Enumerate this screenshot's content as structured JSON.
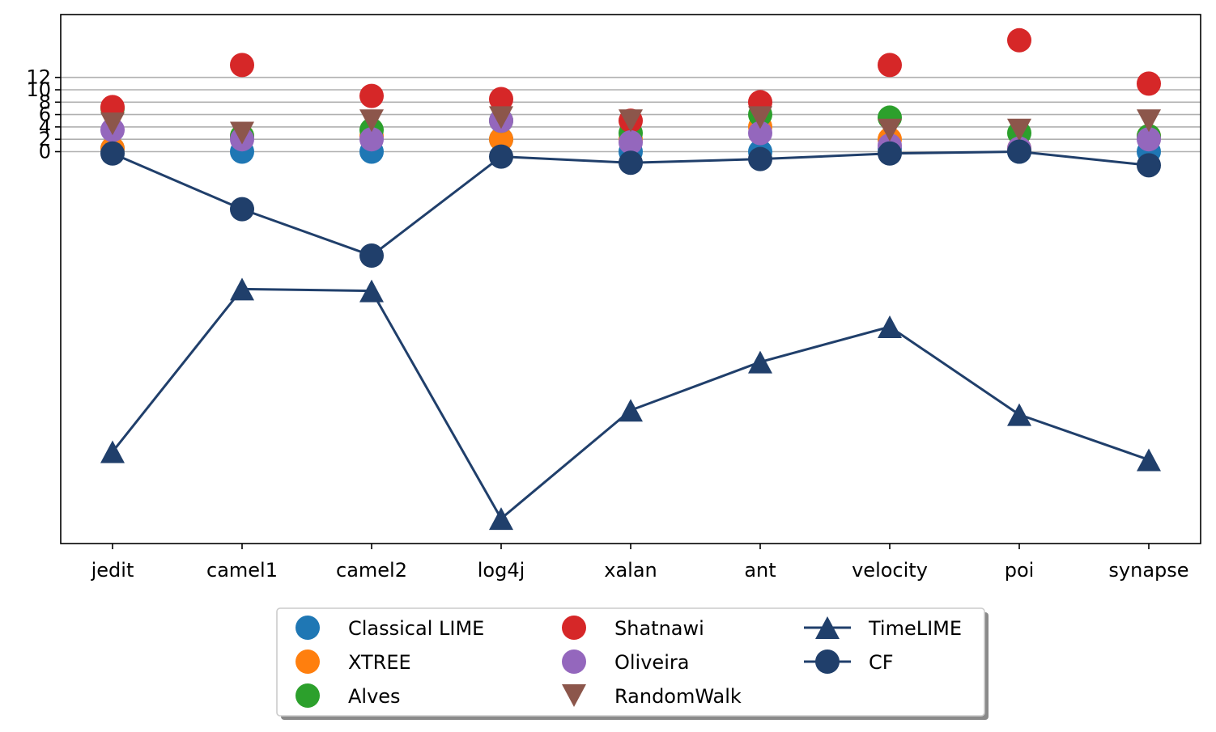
{
  "chart_data": {
    "type": "scatter",
    "categories": [
      "jedit",
      "camel1",
      "camel2",
      "log4j",
      "xalan",
      "ant",
      "velocity",
      "poi",
      "synapse"
    ],
    "y_ticks": [
      0,
      2,
      4,
      6,
      8,
      10,
      12
    ],
    "ylim": [
      -63.5,
      21.5
    ],
    "grid": "horizontal",
    "legend_position": "below",
    "series": [
      {
        "name": "Classical LIME",
        "color": "#1f77b4",
        "marker": "circle",
        "line": false,
        "values": [
          0.5,
          0,
          0,
          2,
          0,
          0,
          0.5,
          0,
          0
        ]
      },
      {
        "name": "XTREE",
        "color": "#ff7f0e",
        "marker": "circle",
        "line": false,
        "values": [
          0.5,
          2.5,
          2.5,
          2,
          2,
          4,
          2,
          0.5,
          2.5
        ]
      },
      {
        "name": "Alves",
        "color": "#2ca02c",
        "marker": "circle",
        "line": false,
        "values": [
          7,
          2.5,
          3.5,
          5,
          3,
          6,
          5.5,
          3,
          2.5
        ]
      },
      {
        "name": "Shatnawi",
        "color": "#d62728",
        "marker": "circle",
        "line": false,
        "values": [
          7.2,
          14,
          9,
          8.5,
          5,
          8,
          14,
          18,
          11
        ]
      },
      {
        "name": "Oliveira",
        "color": "#9467bd",
        "marker": "circle",
        "line": false,
        "values": [
          3.5,
          2,
          2,
          5,
          1.5,
          3,
          1,
          0.5,
          2
        ]
      },
      {
        "name": "RandomWalk",
        "color": "#8c564b",
        "marker": "triangle-down",
        "line": false,
        "values": [
          4.5,
          3,
          5,
          5.5,
          5,
          5.5,
          3.5,
          3.5,
          5
        ]
      },
      {
        "name": "TimeLIME",
        "color": "#203f6b",
        "marker": "triangle-up",
        "line": true,
        "values": [
          -48.5,
          -22.2,
          -22.5,
          -59.3,
          -41.8,
          -34,
          -28.3,
          -42.5,
          -49.8
        ]
      },
      {
        "name": "CF",
        "color": "#203f6b",
        "marker": "circle",
        "line": true,
        "values": [
          -0.3,
          -9.3,
          -16.8,
          -0.8,
          -1.8,
          -1.2,
          -0.3,
          0,
          -2.2
        ]
      }
    ]
  }
}
